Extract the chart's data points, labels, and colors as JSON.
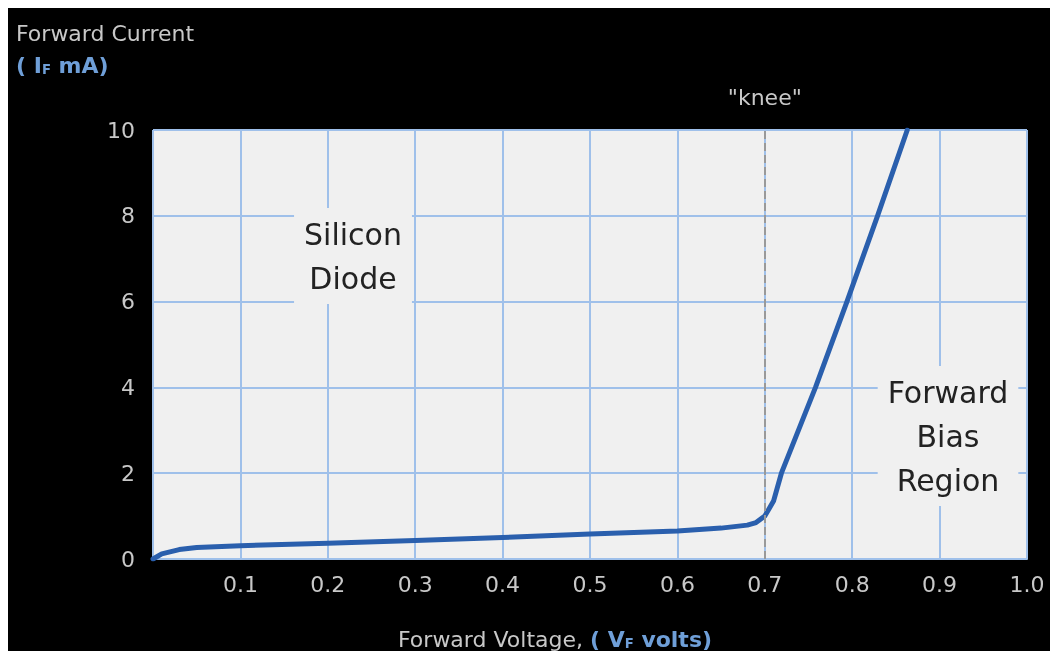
{
  "chart_data": {
    "type": "line",
    "ylabel": "Forward Current\n( I$_{F}$ mA)",
    "xlabel": "Forward Voltage, ( V$_{F}$ volts)",
    "annotations": [
      "Silicon Diode",
      "Forward Bias Region"
    ],
    "series": [
      {
        "color": "#2a5fad",
        "x": [
          0,
          0.01,
          0.03,
          0.05,
          0.1,
          0.2,
          0.3,
          0.4,
          0.5,
          0.6,
          0.65,
          0.68,
          0.69,
          0.7,
          0.71,
          0.719,
          0.758,
          0.794,
          0.829,
          0.863
        ],
        "values": [
          0,
          0.12,
          0.22,
          0.27,
          0.31,
          0.37,
          0.43,
          0.5,
          0.58,
          0.65,
          0.72,
          0.79,
          0.85,
          1.0,
          1.35,
          2,
          4,
          6,
          8,
          10
        ]
      }
    ],
    "xlim": [
      0,
      1
    ],
    "xticks": [
      {
        "value": 0,
        "label": null
      },
      0.1,
      0.2,
      0.3,
      0.4,
      0.5,
      0.6,
      0.7,
      0.8,
      0.9,
      {
        "value": 1,
        "label": "1.0"
      }
    ],
    "ylim": [
      0,
      10
    ],
    "yticks": [
      0,
      2,
      4,
      6,
      8,
      10
    ],
    "grid": true,
    "marker": "none",
    "line_style": "solid",
    "ref_lines": [
      {
        "axis": "x",
        "value": 0.7,
        "label": "\"knee\"",
        "color": "#999999",
        "line_style": "dashed"
      }
    ]
  }
}
